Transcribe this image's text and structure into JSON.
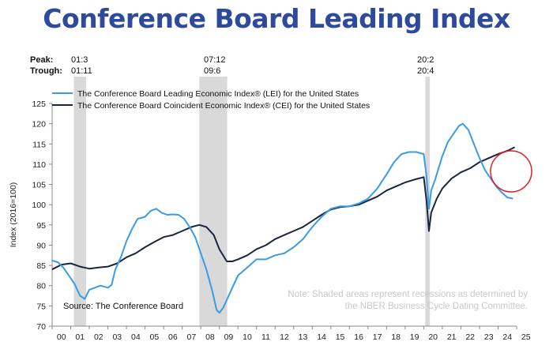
{
  "page": {
    "title": "Conference Board Leading Index"
  },
  "chart_data": {
    "type": "line",
    "title": "Conference Board Leading Index",
    "ylabel": "Index (2016=100)",
    "xlabel": "",
    "xlim": [
      2000.0,
      2025.0
    ],
    "ylim": [
      70,
      125
    ],
    "yticks": [
      70,
      75,
      80,
      85,
      90,
      95,
      100,
      105,
      110,
      115,
      120,
      125
    ],
    "xticks": [
      "00",
      "01",
      "02",
      "03",
      "04",
      "05",
      "06",
      "07",
      "08",
      "09",
      "10",
      "11",
      "12",
      "13",
      "14",
      "15",
      "16",
      "17",
      "18",
      "19",
      "20",
      "21",
      "22",
      "23",
      "24",
      "25"
    ],
    "peak_label": "Peak:",
    "trough_label": "Trough:",
    "recessions": [
      {
        "peak": "01:3",
        "trough": "01:11",
        "start": 2001.17,
        "end": 2001.83
      },
      {
        "peak": "07:12",
        "trough": "09:6",
        "start": 2007.92,
        "end": 2009.42
      },
      {
        "peak": "20:2",
        "trough": "20:4",
        "start": 2020.08,
        "end": 2020.33
      }
    ],
    "series": [
      {
        "name": "The Conference Board Leading Economic Index® (LEI) for the United States",
        "color": "#3a9be6",
        "x": [
          2000.0,
          2000.3,
          2000.6,
          2000.9,
          2001.2,
          2001.5,
          2001.75,
          2002.0,
          2002.3,
          2002.6,
          2003.0,
          2003.2,
          2003.4,
          2003.7,
          2004.0,
          2004.3,
          2004.6,
          2005.0,
          2005.3,
          2005.6,
          2005.9,
          2006.2,
          2006.5,
          2006.8,
          2007.1,
          2007.4,
          2007.7,
          2008.0,
          2008.3,
          2008.6,
          2008.85,
          2009.0,
          2009.2,
          2009.4,
          2009.7,
          2010.0,
          2010.5,
          2011.0,
          2011.5,
          2012.0,
          2012.5,
          2013.0,
          2013.5,
          2014.0,
          2014.5,
          2015.0,
          2015.5,
          2016.0,
          2016.5,
          2017.0,
          2017.5,
          2018.0,
          2018.4,
          2018.8,
          2019.2,
          2019.6,
          2020.0,
          2020.15,
          2020.28,
          2020.4,
          2020.6,
          2020.8,
          2021.0,
          2021.3,
          2021.6,
          2021.9,
          2022.1,
          2022.4,
          2022.7,
          2023.0,
          2023.3,
          2023.6,
          2023.9,
          2024.2,
          2024.5,
          2024.8
        ],
        "values": [
          86.2,
          85.8,
          84.5,
          82.5,
          80.5,
          77.5,
          76.7,
          79.0,
          79.5,
          80.0,
          79.5,
          80.2,
          84.0,
          87.0,
          91.0,
          94.0,
          96.5,
          97.0,
          98.5,
          99.0,
          98.0,
          97.5,
          97.6,
          97.5,
          96.5,
          94.5,
          92.0,
          88.0,
          84.0,
          79.0,
          74.0,
          73.3,
          74.5,
          76.5,
          79.5,
          82.5,
          84.5,
          86.5,
          86.5,
          87.5,
          88.0,
          89.5,
          91.5,
          94.5,
          97.0,
          99.0,
          99.6,
          99.6,
          100.3,
          101.5,
          104.0,
          107.5,
          110.5,
          112.5,
          113.0,
          113.0,
          112.5,
          107.0,
          99.0,
          103.5,
          106.0,
          109.0,
          112.0,
          115.5,
          117.5,
          119.5,
          120.0,
          118.5,
          115.0,
          111.5,
          108.5,
          106.5,
          104.5,
          103.0,
          101.8,
          101.5
        ]
      },
      {
        "name": "The Conference Board Coincident Economic Index® (CEI) for the United States",
        "color": "#1a2540",
        "x": [
          2000.0,
          2000.5,
          2001.0,
          2001.5,
          2002.0,
          2002.5,
          2003.0,
          2003.5,
          2004.0,
          2004.5,
          2005.0,
          2005.5,
          2006.0,
          2006.5,
          2007.0,
          2007.5,
          2007.92,
          2008.3,
          2008.7,
          2009.0,
          2009.4,
          2009.7,
          2010.0,
          2010.5,
          2011.0,
          2011.5,
          2012.0,
          2012.5,
          2013.0,
          2013.5,
          2014.0,
          2014.5,
          2015.0,
          2015.5,
          2016.0,
          2016.5,
          2017.0,
          2017.5,
          2018.0,
          2018.5,
          2019.0,
          2019.5,
          2020.0,
          2020.15,
          2020.28,
          2020.4,
          2020.7,
          2021.0,
          2021.5,
          2022.0,
          2022.5,
          2023.0,
          2023.5,
          2024.0,
          2024.5,
          2024.9
        ],
        "values": [
          84.0,
          85.2,
          85.5,
          84.7,
          84.2,
          84.5,
          84.7,
          85.5,
          87.0,
          88.0,
          89.5,
          90.8,
          92.0,
          92.5,
          93.5,
          94.5,
          95.0,
          94.5,
          92.5,
          89.0,
          86.0,
          86.0,
          86.5,
          87.5,
          89.0,
          90.0,
          91.5,
          92.5,
          93.5,
          94.5,
          96.0,
          97.5,
          98.8,
          99.4,
          99.6,
          100.0,
          101.0,
          102.0,
          103.5,
          104.5,
          105.5,
          106.2,
          106.8,
          101.0,
          93.5,
          98.0,
          101.5,
          104.0,
          106.5,
          108.0,
          109.0,
          110.5,
          111.5,
          112.5,
          113.3,
          114.2
        ]
      }
    ],
    "annotations": {
      "source": "Source: The Conference Board",
      "note_line1": "Note: Shaded areas represent recessions as determined by",
      "note_line2": "the NBER Business Cycle Dating Committee.",
      "circle_color": "#e02020"
    }
  }
}
